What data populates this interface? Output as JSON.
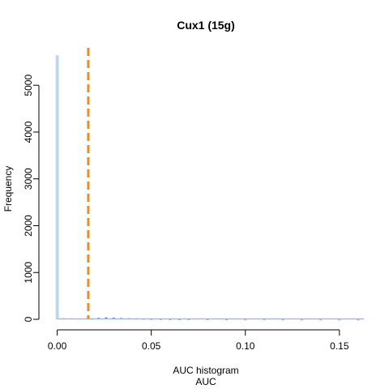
{
  "chart_data": {
    "type": "bar",
    "title": "Cux1 (15g)",
    "xlabel": "AUC histogram",
    "xlabel2": "AUC",
    "ylabel": "Frequency",
    "xlim": [
      -0.005,
      0.163
    ],
    "ylim": [
      0,
      5800
    ],
    "x_ticks": [
      0.0,
      0.05,
      0.1,
      0.15
    ],
    "x_tick_labels": [
      "0.00",
      "0.05",
      "0.10",
      "0.15"
    ],
    "y_ticks": [
      0,
      1000,
      2000,
      3000,
      4000,
      5000
    ],
    "y_tick_labels": [
      "0",
      "1000",
      "2000",
      "3000",
      "4000",
      "5000"
    ],
    "threshold": {
      "x": 0.0165,
      "color": "#f28c1e",
      "style": "dashed"
    },
    "bins": [
      {
        "x": 0.0,
        "count": 5640,
        "color": "#bdd7ee"
      },
      {
        "x": 0.0035,
        "count": 30,
        "color": "#bdd7ee"
      },
      {
        "x": 0.0075,
        "count": 24,
        "color": "#bdd7ee"
      },
      {
        "x": 0.012,
        "count": 18,
        "color": "#bdd7ee"
      },
      {
        "x": 0.0185,
        "count": 20,
        "color": "#3a6fd8"
      },
      {
        "x": 0.022,
        "count": 32,
        "color": "#3a6fd8"
      },
      {
        "x": 0.026,
        "count": 40,
        "color": "#3a6fd8"
      },
      {
        "x": 0.03,
        "count": 36,
        "color": "#3a6fd8"
      },
      {
        "x": 0.034,
        "count": 30,
        "color": "#4a88e0"
      },
      {
        "x": 0.038,
        "count": 26,
        "color": "#4a88e0"
      },
      {
        "x": 0.042,
        "count": 22,
        "color": "#4a88e0"
      },
      {
        "x": 0.046,
        "count": 18,
        "color": "#4a88e0"
      },
      {
        "x": 0.05,
        "count": 14,
        "color": "#5aa0e0"
      },
      {
        "x": 0.055,
        "count": 12,
        "color": "#5aa0e0"
      },
      {
        "x": 0.06,
        "count": 10,
        "color": "#6ab0b8"
      },
      {
        "x": 0.065,
        "count": 9,
        "color": "#7ab890"
      },
      {
        "x": 0.07,
        "count": 8,
        "color": "#8cc080"
      },
      {
        "x": 0.08,
        "count": 7,
        "color": "#9ab8c8"
      },
      {
        "x": 0.09,
        "count": 6,
        "color": "#9aa8d8"
      },
      {
        "x": 0.1,
        "count": 5,
        "color": "#a0a8e0"
      },
      {
        "x": 0.11,
        "count": 5,
        "color": "#a8a8e0"
      },
      {
        "x": 0.12,
        "count": 4,
        "color": "#a8a8e0"
      },
      {
        "x": 0.13,
        "count": 4,
        "color": "#b0a8e0"
      },
      {
        "x": 0.14,
        "count": 3,
        "color": "#b0a8e0"
      },
      {
        "x": 0.15,
        "count": 3,
        "color": "#b0a8e0"
      },
      {
        "x": 0.16,
        "count": 2,
        "color": "#b0a8e0"
      }
    ]
  }
}
